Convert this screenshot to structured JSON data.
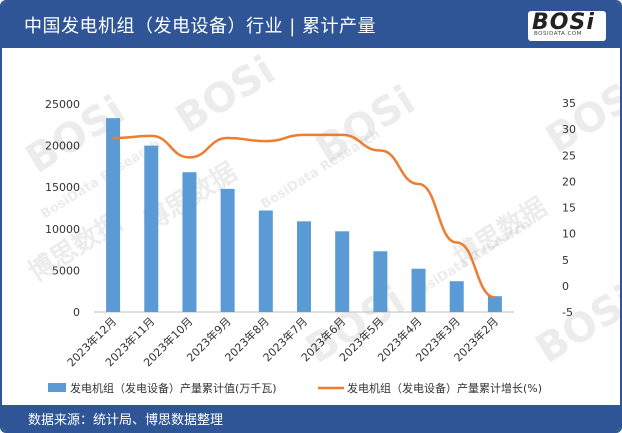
{
  "header": {
    "title": "中国发电机组（发电设备）行业 | 累计产量"
  },
  "logo": {
    "main": "BOSi",
    "sub": "BOSIDATA.COM"
  },
  "footer": {
    "source": "数据来源：统计局、博思数据整理"
  },
  "watermark": {
    "brand": "BOSi",
    "cn": "博思数据",
    "en": "BosiData Research"
  },
  "colors": {
    "header_bg": "#2f5597",
    "bar": "#5b9bd5",
    "line": "#ed7d31"
  },
  "chart_data": {
    "type": "bar",
    "categories": [
      "2023年12月",
      "2023年11月",
      "2023年10月",
      "2023年9月",
      "2023年8月",
      "2023年7月",
      "2023年6月",
      "2023年5月",
      "2023年4月",
      "2023年3月",
      "2023年2月"
    ],
    "series": [
      {
        "name": "发电机组（发电设备）产量累计值(万千瓦)",
        "type": "bar",
        "axis": "left",
        "color": "#5b9bd5",
        "values": [
          23300,
          20000,
          16800,
          14800,
          12200,
          10900,
          9700,
          7300,
          5200,
          3700,
          1900
        ]
      },
      {
        "name": "发电机组（发电设备）产量累计增长(%)",
        "type": "line",
        "axis": "right",
        "color": "#ed7d31",
        "values": [
          28.3,
          28.7,
          24.6,
          28.3,
          27.7,
          28.9,
          28.9,
          25.9,
          19.5,
          8.3,
          -2.2
        ]
      }
    ],
    "y_left": {
      "ylim": [
        0,
        25000
      ],
      "ticks": [
        "0",
        "5000",
        "10000",
        "15000",
        "20000",
        "25000"
      ]
    },
    "y_right": {
      "ylim": [
        -5,
        35
      ],
      "ticks": [
        "-5",
        "0",
        "5",
        "10",
        "15",
        "20",
        "25",
        "30",
        "35"
      ]
    },
    "legend_position": "bottom",
    "grid": false
  }
}
